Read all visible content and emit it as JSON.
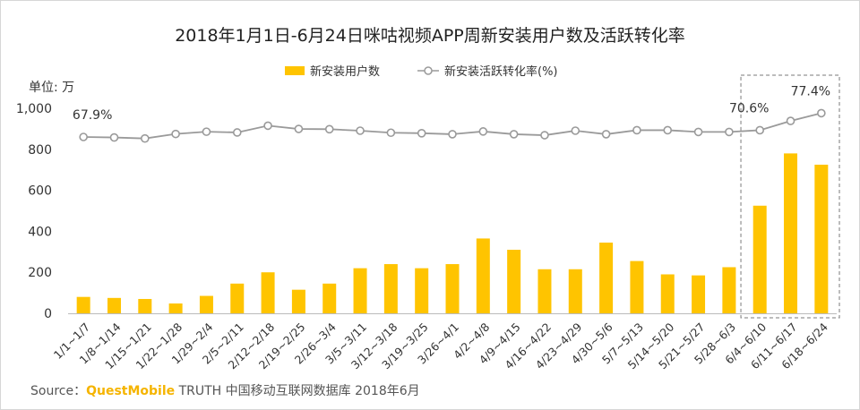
{
  "chart_data": {
    "type": "bar",
    "title": "2018年1月1日-6月24日咪咕视频APP周新安装用户数及活跃转化率",
    "ylabel": "单位: 万",
    "ylim": [
      0,
      1000
    ],
    "yticks": [
      "0",
      "200",
      "400",
      "600",
      "800",
      "1,000"
    ],
    "categories": [
      "1/1~1/7",
      "1/8~1/14",
      "1/15~1/21",
      "1/22~1/28",
      "1/29~2/4",
      "2/5~2/11",
      "2/12~2/18",
      "2/19~2/25",
      "2/26~3/4",
      "3/5~3/11",
      "3/12~3/18",
      "3/19~3/25",
      "3/26~4/1",
      "4/2~4/8",
      "4/9~4/15",
      "4/16~4/22",
      "4/23~4/29",
      "4/30~5/6",
      "5/7~5/13",
      "5/14~5/20",
      "5/21~5/27",
      "5/28~6/3",
      "6/4~6/10",
      "6/11~6/17",
      "6/18~6/24"
    ],
    "series": [
      {
        "name": "新安装用户数",
        "type": "bar",
        "color": "#ffc400",
        "values": [
          80,
          75,
          70,
          48,
          85,
          145,
          200,
          115,
          145,
          220,
          240,
          220,
          240,
          365,
          310,
          215,
          215,
          345,
          255,
          190,
          185,
          225,
          525,
          780,
          725
        ]
      },
      {
        "name": "新安装活跃转化率(%)",
        "type": "line",
        "color": "#9a9a9a",
        "values": [
          67.9,
          67.7,
          67.3,
          69.1,
          70.0,
          69.7,
          72.4,
          71.1,
          71.0,
          70.4,
          69.6,
          69.4,
          69.0,
          70.1,
          69.0,
          68.6,
          70.4,
          69.0,
          70.6,
          70.6,
          69.9,
          69.9,
          70.6,
          74.3,
          77.4
        ]
      }
    ],
    "annotations": [
      {
        "index": 0,
        "text": "67.9%"
      },
      {
        "index": 22,
        "text": "70.6%"
      },
      {
        "index": 24,
        "text": "77.4%"
      }
    ],
    "highlight_last_n": 3,
    "legend_position": "top-center",
    "grid": false
  },
  "source": {
    "label": "Source：",
    "brand": "QuestMobile",
    "text": " TRUTH 中国移动互联网数据库 2018年6月"
  }
}
